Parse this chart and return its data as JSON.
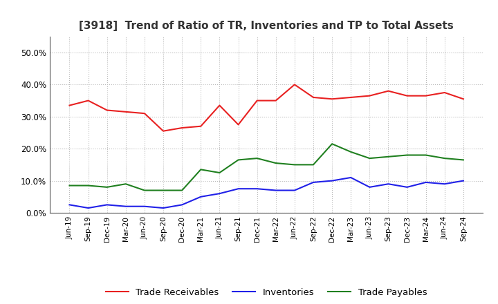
{
  "title": "[3918]  Trend of Ratio of TR, Inventories and TP to Total Assets",
  "x_labels": [
    "Jun-19",
    "Sep-19",
    "Dec-19",
    "Mar-20",
    "Jun-20",
    "Sep-20",
    "Dec-20",
    "Mar-21",
    "Jun-21",
    "Sep-21",
    "Dec-21",
    "Mar-22",
    "Jun-22",
    "Sep-22",
    "Dec-22",
    "Mar-23",
    "Jun-23",
    "Sep-23",
    "Dec-23",
    "Mar-24",
    "Jun-24",
    "Sep-24"
  ],
  "trade_receivables": [
    33.5,
    35.0,
    32.0,
    31.5,
    31.0,
    25.5,
    26.5,
    27.0,
    33.5,
    27.5,
    35.0,
    35.0,
    40.0,
    36.0,
    35.5,
    36.0,
    36.5,
    38.0,
    36.5,
    36.5,
    37.5,
    35.5
  ],
  "inventories": [
    2.5,
    1.5,
    2.5,
    2.0,
    2.0,
    1.5,
    2.5,
    5.0,
    6.0,
    7.5,
    7.5,
    7.0,
    7.0,
    9.5,
    10.0,
    11.0,
    8.0,
    9.0,
    8.0,
    9.5,
    9.0,
    10.0
  ],
  "trade_payables": [
    8.5,
    8.5,
    8.0,
    9.0,
    7.0,
    7.0,
    7.0,
    13.5,
    12.5,
    16.5,
    17.0,
    15.5,
    15.0,
    15.0,
    21.5,
    19.0,
    17.0,
    17.5,
    18.0,
    18.0,
    17.0,
    16.5
  ],
  "tr_color": "#e82020",
  "inv_color": "#2020e8",
  "tp_color": "#208020",
  "ylim": [
    0,
    55
  ],
  "yticks": [
    0,
    10,
    20,
    30,
    40,
    50
  ],
  "ytick_labels": [
    "0.0%",
    "10.0%",
    "20.0%",
    "30.0%",
    "40.0%",
    "50.0%"
  ],
  "legend_labels": [
    "Trade Receivables",
    "Inventories",
    "Trade Payables"
  ],
  "bg_color": "#ffffff",
  "grid_color": "#bbbbbb"
}
